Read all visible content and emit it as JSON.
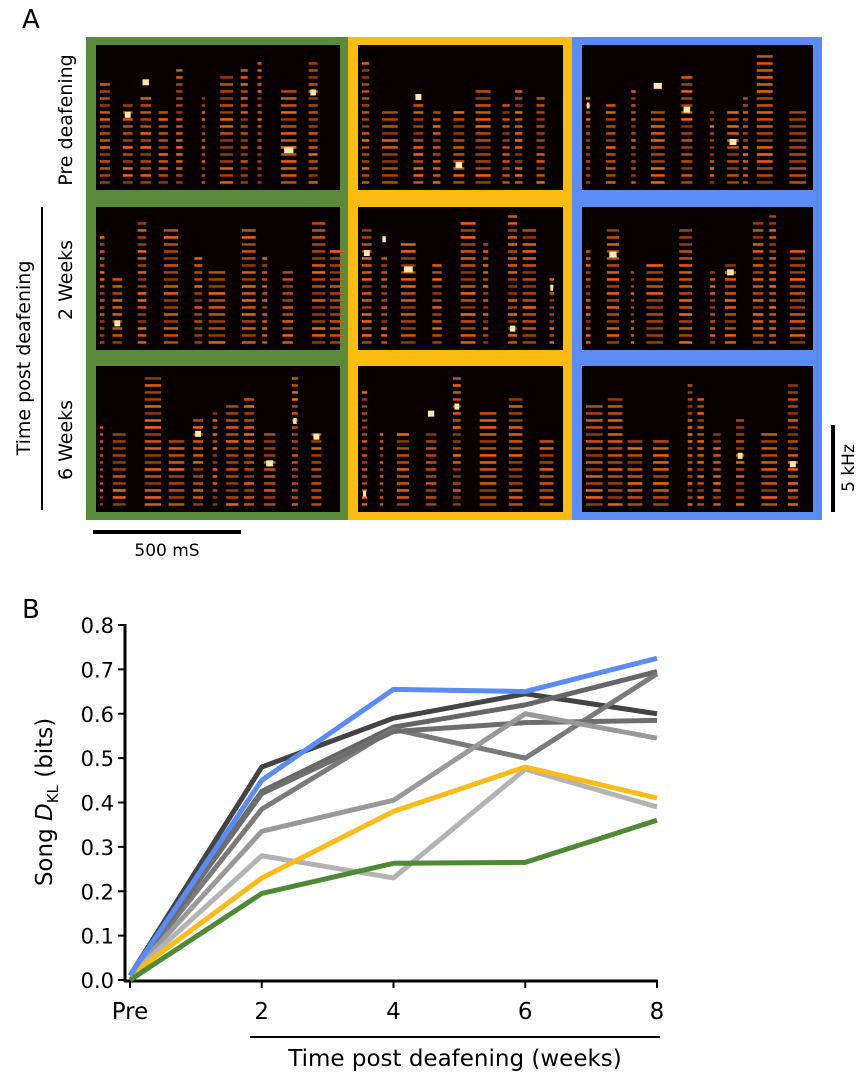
{
  "panel_a": {
    "label": "A",
    "rows": [
      "Pre deafening",
      "2 Weeks",
      "6 Weeks"
    ],
    "row_group": "Time post deafening",
    "time_scale": "500 mS",
    "freq_scale": "5 kHz"
  },
  "chart_data": {
    "type": "line",
    "label": "B",
    "ylabel": {
      "prefix": "Song",
      "symbol": "D",
      "subscript": "KL",
      "unit": "(bits)"
    },
    "xlabel": "Time post deafening (weeks)",
    "x": [
      0,
      2,
      4,
      6,
      8
    ],
    "xlim": [
      0,
      8
    ],
    "xticks": [
      {
        "value": 0,
        "label": "Pre"
      },
      2,
      4,
      6,
      8
    ],
    "ylim": [
      0,
      0.8
    ],
    "yticks": [
      {
        "value": 0,
        "label": "0.0"
      },
      0.1,
      0.2,
      0.3,
      0.4,
      0.5,
      0.6,
      0.7,
      0.8
    ],
    "series": [
      {
        "color": "#444444",
        "values": [
          0.01,
          0.48,
          0.59,
          0.645,
          0.6
        ]
      },
      {
        "color": "#666666",
        "values": [
          0.01,
          0.425,
          0.57,
          0.62,
          0.695
        ]
      },
      {
        "color": "#7a7a7a",
        "values": [
          0.01,
          0.385,
          0.565,
          0.5,
          0.69
        ]
      },
      {
        "color": "#6e6e6e",
        "values": [
          0.01,
          0.42,
          0.56,
          0.58,
          0.585
        ]
      },
      {
        "color": "#999999",
        "values": [
          0.01,
          0.335,
          0.405,
          0.6,
          0.545
        ]
      },
      {
        "color": "#b3b3b3",
        "values": [
          0.01,
          0.28,
          0.23,
          0.475,
          0.39
        ]
      },
      {
        "color": "#fbbb1a",
        "values": [
          0.01,
          0.23,
          0.38,
          0.48,
          0.41
        ]
      },
      {
        "color": "#4e8a35",
        "values": [
          0.0,
          0.195,
          0.263,
          0.265,
          0.36
        ]
      },
      {
        "color": "#5b8cf5",
        "values": [
          0.01,
          0.45,
          0.655,
          0.65,
          0.725
        ]
      }
    ]
  }
}
